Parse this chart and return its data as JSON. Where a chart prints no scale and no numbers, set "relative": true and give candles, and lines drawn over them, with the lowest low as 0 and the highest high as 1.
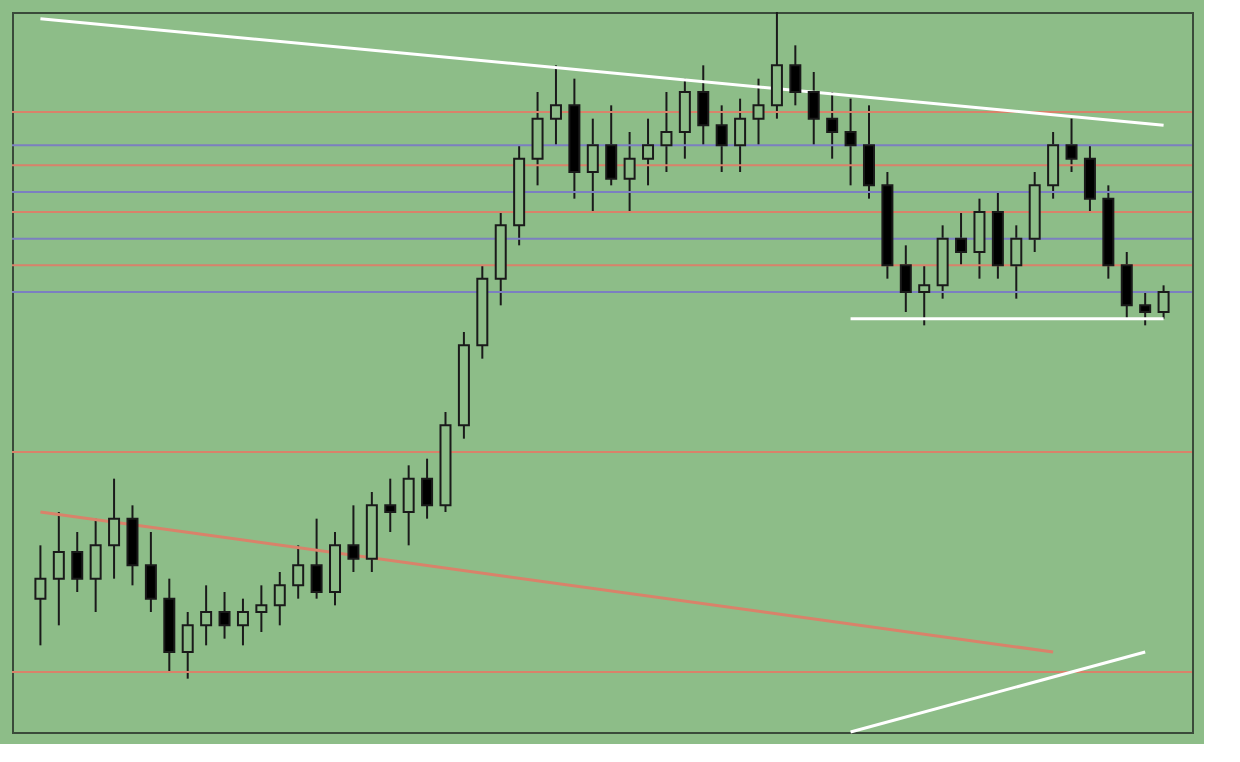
{
  "chart_data": {
    "type": "candlestick",
    "relative": true,
    "categories": [
      null,
      null,
      null,
      null,
      null,
      null,
      null,
      null,
      null,
      null,
      null,
      null,
      null,
      null,
      null,
      null,
      null,
      null,
      null,
      null,
      null,
      null,
      null,
      null,
      null,
      null,
      null,
      null,
      null,
      null,
      null,
      null,
      null,
      null,
      null,
      null,
      null,
      null,
      null,
      null,
      null,
      null,
      null,
      null,
      null,
      null,
      null,
      null,
      null,
      null,
      null,
      null,
      null,
      null,
      null,
      null,
      null,
      null,
      null,
      null,
      null,
      null
    ],
    "ohlc": [
      [
        0.12,
        0.2,
        0.05,
        0.15
      ],
      [
        0.15,
        0.25,
        0.08,
        0.19
      ],
      [
        0.19,
        0.22,
        0.13,
        0.15
      ],
      [
        0.15,
        0.24,
        0.1,
        0.2
      ],
      [
        0.2,
        0.3,
        0.15,
        0.24
      ],
      [
        0.24,
        0.26,
        0.14,
        0.17
      ],
      [
        0.17,
        0.22,
        0.1,
        0.12
      ],
      [
        0.12,
        0.15,
        0.01,
        0.04
      ],
      [
        0.04,
        0.1,
        0.0,
        0.08
      ],
      [
        0.08,
        0.14,
        0.05,
        0.1
      ],
      [
        0.1,
        0.13,
        0.06,
        0.08
      ],
      [
        0.08,
        0.12,
        0.05,
        0.1
      ],
      [
        0.1,
        0.14,
        0.07,
        0.11
      ],
      [
        0.11,
        0.16,
        0.08,
        0.14
      ],
      [
        0.14,
        0.2,
        0.12,
        0.17
      ],
      [
        0.17,
        0.24,
        0.12,
        0.13
      ],
      [
        0.13,
        0.22,
        0.11,
        0.2
      ],
      [
        0.2,
        0.26,
        0.16,
        0.18
      ],
      [
        0.18,
        0.28,
        0.16,
        0.26
      ],
      [
        0.26,
        0.3,
        0.22,
        0.25
      ],
      [
        0.25,
        0.32,
        0.2,
        0.3
      ],
      [
        0.3,
        0.33,
        0.24,
        0.26
      ],
      [
        0.26,
        0.4,
        0.25,
        0.38
      ],
      [
        0.38,
        0.52,
        0.36,
        0.5
      ],
      [
        0.5,
        0.62,
        0.48,
        0.6
      ],
      [
        0.6,
        0.7,
        0.56,
        0.68
      ],
      [
        0.68,
        0.8,
        0.65,
        0.78
      ],
      [
        0.78,
        0.88,
        0.74,
        0.84
      ],
      [
        0.84,
        0.92,
        0.8,
        0.86
      ],
      [
        0.86,
        0.9,
        0.72,
        0.76
      ],
      [
        0.76,
        0.84,
        0.7,
        0.8
      ],
      [
        0.8,
        0.86,
        0.74,
        0.75
      ],
      [
        0.75,
        0.82,
        0.7,
        0.78
      ],
      [
        0.78,
        0.84,
        0.74,
        0.8
      ],
      [
        0.8,
        0.88,
        0.76,
        0.82
      ],
      [
        0.82,
        0.9,
        0.78,
        0.88
      ],
      [
        0.88,
        0.92,
        0.8,
        0.83
      ],
      [
        0.83,
        0.86,
        0.76,
        0.8
      ],
      [
        0.8,
        0.87,
        0.76,
        0.84
      ],
      [
        0.84,
        0.9,
        0.8,
        0.86
      ],
      [
        0.86,
        1.0,
        0.84,
        0.92
      ],
      [
        0.92,
        0.95,
        0.86,
        0.88
      ],
      [
        0.88,
        0.91,
        0.8,
        0.84
      ],
      [
        0.84,
        0.88,
        0.78,
        0.82
      ],
      [
        0.82,
        0.87,
        0.74,
        0.8
      ],
      [
        0.8,
        0.86,
        0.72,
        0.74
      ],
      [
        0.74,
        0.76,
        0.6,
        0.62
      ],
      [
        0.62,
        0.65,
        0.55,
        0.58
      ],
      [
        0.58,
        0.62,
        0.53,
        0.59
      ],
      [
        0.59,
        0.68,
        0.57,
        0.66
      ],
      [
        0.66,
        0.7,
        0.62,
        0.64
      ],
      [
        0.64,
        0.72,
        0.6,
        0.7
      ],
      [
        0.7,
        0.73,
        0.6,
        0.62
      ],
      [
        0.62,
        0.68,
        0.57,
        0.66
      ],
      [
        0.66,
        0.76,
        0.64,
        0.74
      ],
      [
        0.74,
        0.82,
        0.72,
        0.8
      ],
      [
        0.8,
        0.84,
        0.76,
        0.78
      ],
      [
        0.78,
        0.8,
        0.7,
        0.72
      ],
      [
        0.72,
        0.74,
        0.6,
        0.62
      ],
      [
        0.62,
        0.64,
        0.54,
        0.56
      ],
      [
        0.56,
        0.58,
        0.53,
        0.55
      ],
      [
        0.55,
        0.59,
        0.54,
        0.58
      ]
    ],
    "series": [
      {
        "type": "line",
        "color": "#ffffff",
        "values": [
          0.99,
          null,
          null,
          null,
          null,
          null,
          null,
          null,
          null,
          null,
          null,
          null,
          null,
          null,
          null,
          null,
          null,
          null,
          null,
          null,
          null,
          null,
          null,
          null,
          null,
          null,
          null,
          null,
          null,
          null,
          null,
          null,
          null,
          null,
          null,
          null,
          null,
          null,
          null,
          null,
          null,
          null,
          null,
          null,
          null,
          null,
          null,
          null,
          null,
          null,
          null,
          null,
          null,
          null,
          null,
          null,
          null,
          null,
          null,
          null,
          null,
          0.83
        ]
      },
      {
        "type": "line",
        "color": "#ffffff",
        "values": [
          null,
          null,
          null,
          null,
          null,
          null,
          null,
          null,
          null,
          null,
          null,
          null,
          null,
          null,
          null,
          null,
          null,
          null,
          null,
          null,
          null,
          null,
          null,
          null,
          null,
          null,
          null,
          null,
          null,
          null,
          null,
          null,
          null,
          null,
          null,
          null,
          null,
          null,
          null,
          null,
          null,
          null,
          null,
          null,
          0.54,
          null,
          null,
          null,
          null,
          null,
          null,
          null,
          null,
          null,
          null,
          null,
          null,
          null,
          null,
          null,
          null,
          0.54
        ]
      },
      {
        "type": "line",
        "color": "#d9826a",
        "values": [
          0.25,
          null,
          null,
          null,
          null,
          null,
          null,
          null,
          null,
          null,
          null,
          null,
          null,
          null,
          null,
          null,
          null,
          null,
          null,
          null,
          null,
          null,
          null,
          null,
          null,
          null,
          null,
          null,
          null,
          null,
          null,
          null,
          null,
          null,
          null,
          null,
          null,
          null,
          null,
          null,
          null,
          null,
          null,
          null,
          null,
          null,
          null,
          null,
          null,
          null,
          null,
          null,
          null,
          null,
          null,
          0.04,
          null,
          null,
          null,
          null,
          null,
          null
        ]
      },
      {
        "type": "line",
        "color": "#ffffff",
        "values": [
          null,
          null,
          null,
          null,
          null,
          null,
          null,
          null,
          null,
          null,
          null,
          null,
          null,
          null,
          null,
          null,
          null,
          null,
          null,
          null,
          null,
          null,
          null,
          null,
          null,
          null,
          null,
          null,
          null,
          null,
          null,
          null,
          null,
          null,
          null,
          null,
          null,
          null,
          null,
          null,
          null,
          null,
          null,
          null,
          -0.08,
          null,
          null,
          null,
          null,
          null,
          null,
          null,
          null,
          null,
          null,
          null,
          null,
          null,
          null,
          null,
          0.04,
          null
        ]
      }
    ],
    "ref_lines": [
      {
        "axis": "y",
        "value": 0.85,
        "color": "#d9826a"
      },
      {
        "axis": "y",
        "value": 0.8,
        "color": "#7b7fc0"
      },
      {
        "axis": "y",
        "value": 0.77,
        "color": "#d9826a"
      },
      {
        "axis": "y",
        "value": 0.73,
        "color": "#7b7fc0"
      },
      {
        "axis": "y",
        "value": 0.7,
        "color": "#d9826a"
      },
      {
        "axis": "y",
        "value": 0.66,
        "color": "#7b7fc0"
      },
      {
        "axis": "y",
        "value": 0.62,
        "color": "#d9826a"
      },
      {
        "axis": "y",
        "value": 0.58,
        "color": "#7b7fc0"
      },
      {
        "axis": "y",
        "value": 0.34,
        "color": "#d9826a"
      },
      {
        "axis": "y",
        "value": 0.01,
        "color": "#d9826a"
      }
    ]
  }
}
